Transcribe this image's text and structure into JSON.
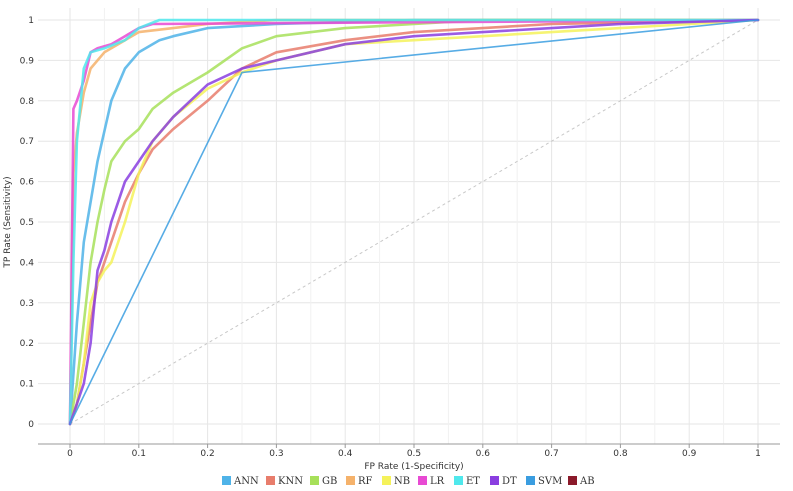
{
  "chart_data": {
    "type": "line",
    "title": "",
    "xlabel": "FP Rate (1-Specificity)",
    "ylabel": "TP Rate (Sensitivity)",
    "xlim": [
      0,
      1
    ],
    "ylim": [
      0,
      1
    ],
    "x_ticks": [
      "0",
      "0.1",
      "0.2",
      "0.3",
      "0.4",
      "0.5",
      "0.6",
      "0.7",
      "0.8",
      "0.9",
      "1"
    ],
    "y_ticks": [
      "0",
      "0.1",
      "0.2",
      "0.3",
      "0.4",
      "0.5",
      "0.6",
      "0.7",
      "0.8",
      "0.9",
      "1"
    ],
    "grid": true,
    "legend_position": "bottom",
    "diagonal_reference": {
      "x": [
        0,
        1
      ],
      "y": [
        0,
        1
      ],
      "color": "#c8c8c8"
    },
    "series": [
      {
        "name": "ANN",
        "color": "#4fb3e8",
        "x": [
          0,
          0.01,
          0.02,
          0.04,
          0.06,
          0.08,
          0.1,
          0.13,
          0.15,
          0.2,
          0.3,
          0.5,
          1
        ],
        "y": [
          0,
          0.25,
          0.45,
          0.65,
          0.8,
          0.88,
          0.92,
          0.95,
          0.96,
          0.98,
          0.99,
          1,
          1
        ]
      },
      {
        "name": "KNN",
        "color": "#e87d6c",
        "x": [
          0,
          0.01,
          0.02,
          0.03,
          0.04,
          0.06,
          0.08,
          0.1,
          0.12,
          0.15,
          0.2,
          0.25,
          0.3,
          0.4,
          0.5,
          0.6,
          0.7,
          1
        ],
        "y": [
          0,
          0.05,
          0.15,
          0.25,
          0.35,
          0.45,
          0.55,
          0.62,
          0.68,
          0.73,
          0.8,
          0.88,
          0.92,
          0.95,
          0.97,
          0.98,
          0.99,
          1
        ]
      },
      {
        "name": "GB",
        "color": "#a7e05a",
        "x": [
          0,
          0.01,
          0.02,
          0.03,
          0.04,
          0.05,
          0.06,
          0.08,
          0.1,
          0.12,
          0.15,
          0.2,
          0.25,
          0.3,
          0.4,
          0.5,
          0.6,
          1
        ],
        "y": [
          0,
          0.1,
          0.25,
          0.4,
          0.5,
          0.58,
          0.65,
          0.7,
          0.73,
          0.78,
          0.82,
          0.87,
          0.93,
          0.96,
          0.98,
          0.99,
          1,
          1
        ]
      },
      {
        "name": "RF",
        "color": "#f5b26b",
        "x": [
          0,
          0.005,
          0.01,
          0.02,
          0.03,
          0.05,
          0.08,
          0.1,
          0.15,
          0.2,
          0.3,
          1
        ],
        "y": [
          0,
          0.62,
          0.72,
          0.82,
          0.88,
          0.92,
          0.95,
          0.97,
          0.98,
          0.99,
          1,
          1
        ]
      },
      {
        "name": "NB",
        "color": "#f5f25a",
        "x": [
          0,
          0.01,
          0.02,
          0.03,
          0.04,
          0.05,
          0.06,
          0.08,
          0.1,
          0.12,
          0.15,
          0.2,
          0.25,
          0.3,
          0.35,
          0.4,
          0.5,
          0.6,
          0.7,
          0.8,
          1
        ],
        "y": [
          0,
          0.05,
          0.15,
          0.3,
          0.35,
          0.38,
          0.4,
          0.5,
          0.62,
          0.7,
          0.76,
          0.83,
          0.87,
          0.9,
          0.92,
          0.94,
          0.95,
          0.96,
          0.97,
          0.98,
          1
        ]
      },
      {
        "name": "LR",
        "color": "#e84ad3",
        "x": [
          0,
          0.005,
          0.01,
          0.02,
          0.03,
          0.04,
          0.06,
          0.08,
          0.1,
          0.12,
          1
        ],
        "y": [
          0,
          0.78,
          0.8,
          0.85,
          0.92,
          0.93,
          0.94,
          0.96,
          0.98,
          0.99,
          1
        ]
      },
      {
        "name": "ET",
        "color": "#4fe8ec",
        "x": [
          0,
          0.005,
          0.01,
          0.02,
          0.03,
          0.05,
          0.08,
          0.1,
          0.13,
          1
        ],
        "y": [
          0,
          0.4,
          0.7,
          0.88,
          0.92,
          0.93,
          0.95,
          0.98,
          1,
          1
        ]
      },
      {
        "name": "DT",
        "color": "#8a3ee0",
        "x": [
          0,
          0.01,
          0.02,
          0.03,
          0.04,
          0.05,
          0.06,
          0.07,
          0.08,
          0.1,
          0.12,
          0.15,
          0.2,
          0.25,
          0.3,
          0.35,
          0.4,
          0.45,
          0.5,
          0.6,
          0.7,
          0.8,
          1
        ],
        "y": [
          0,
          0.05,
          0.1,
          0.2,
          0.38,
          0.43,
          0.5,
          0.55,
          0.6,
          0.65,
          0.7,
          0.76,
          0.84,
          0.88,
          0.9,
          0.92,
          0.94,
          0.95,
          0.96,
          0.97,
          0.98,
          0.99,
          1
        ]
      },
      {
        "name": "SVM",
        "color": "#3a9de0",
        "x": [
          0,
          0.25,
          1
        ],
        "y": [
          0,
          0.87,
          1
        ]
      },
      {
        "name": "AB",
        "color": "#8b1a2a",
        "x": [],
        "y": []
      }
    ]
  }
}
